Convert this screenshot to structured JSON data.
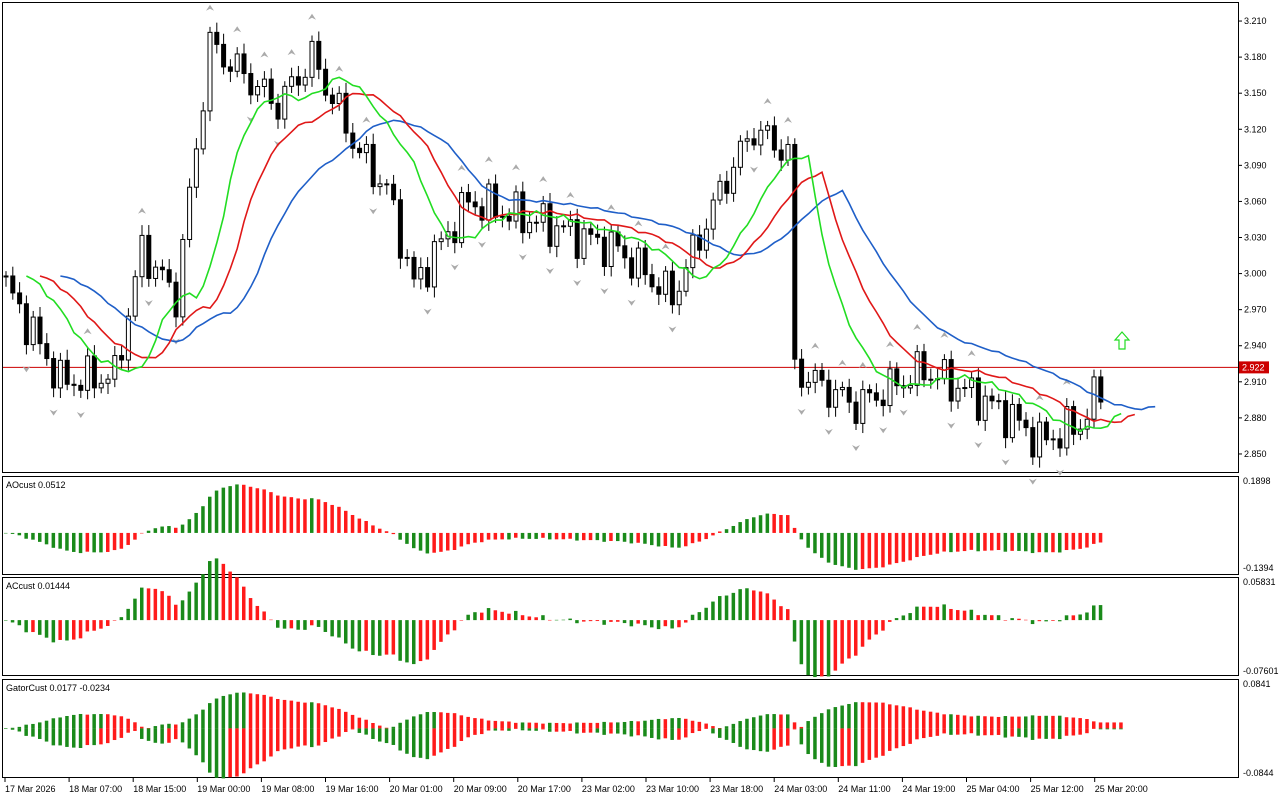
{
  "chart_data": [
    {
      "type": "candlestick",
      "symbol_line_price": 2.922,
      "price_label": "2.922",
      "yticks": [
        "3.210",
        "3.180",
        "3.150",
        "3.120",
        "3.090",
        "3.060",
        "3.030",
        "3.000",
        "2.970",
        "2.940",
        "2.910",
        "2.880",
        "2.850"
      ],
      "ylim": [
        2.835,
        3.225
      ],
      "overlays": [
        {
          "name": "jaw",
          "color": "#1f5fc8"
        },
        {
          "name": "teeth",
          "color": "#e01818"
        },
        {
          "name": "lips",
          "color": "#22dd22"
        }
      ]
    },
    {
      "type": "bar",
      "label": "AOcust 0.0512",
      "ymax_label": "0.1898",
      "ymin_label": "-0.1394",
      "ylim": [
        -0.1394,
        0.1898
      ]
    },
    {
      "type": "bar",
      "label": "ACcust 0.01444",
      "ymax_label": "0.05831",
      "ymin_label": "-0.07601",
      "ylim": [
        -0.07601,
        0.05831
      ]
    },
    {
      "type": "bar",
      "label": "GatorCust 0.0177 -0.0234",
      "ymax_label": "0.0841",
      "ymin_label": "-0.0844",
      "ylim": [
        -0.0844,
        0.0841
      ]
    }
  ],
  "xticks": [
    "17 Mar 2026",
    "18 Mar 07:00",
    "18 Mar 15:00",
    "19 Mar 00:00",
    "19 Mar 08:00",
    "19 Mar 16:00",
    "20 Mar 01:00",
    "20 Mar 09:00",
    "20 Mar 17:00",
    "23 Mar 02:00",
    "23 Mar 10:00",
    "23 Mar 18:00",
    "24 Mar 03:00",
    "24 Mar 11:00",
    "24 Mar 19:00",
    "25 Mar 04:00",
    "25 Mar 12:00",
    "25 Mar 20:00"
  ],
  "colors": {
    "up": "#ffffff",
    "down": "#000000",
    "bull": "#1a8a1a",
    "bear": "#ff1a1a",
    "priceline": "#cc0000",
    "label_bg": "#cc0000",
    "arrow": "#22dd22"
  },
  "icons": {
    "signal": "up-arrow-icon",
    "fractal": "fractal-marker-icon"
  }
}
